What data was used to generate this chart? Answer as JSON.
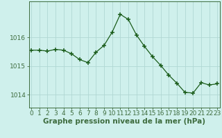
{
  "x": [
    0,
    1,
    2,
    3,
    4,
    5,
    6,
    7,
    8,
    9,
    10,
    11,
    12,
    13,
    14,
    15,
    16,
    17,
    18,
    19,
    20,
    21,
    22,
    23
  ],
  "y": [
    1015.55,
    1015.55,
    1015.52,
    1015.58,
    1015.55,
    1015.42,
    1015.22,
    1015.12,
    1015.48,
    1015.72,
    1016.18,
    1016.8,
    1016.62,
    1016.08,
    1015.68,
    1015.32,
    1015.02,
    1014.68,
    1014.4,
    1014.08,
    1014.06,
    1014.42,
    1014.34,
    1014.38
  ],
  "bg_color": "#cff0ec",
  "grid_color": "#b0d8d4",
  "line_color": "#1a5c1a",
  "marker_color": "#1a5c1a",
  "xlabel": "Graphe pression niveau de la mer (hPa)",
  "yticks": [
    1014,
    1015,
    1016
  ],
  "ylim": [
    1013.55,
    1017.25
  ],
  "xlim": [
    -0.3,
    23.3
  ],
  "xticks": [
    0,
    1,
    2,
    3,
    4,
    5,
    6,
    7,
    8,
    9,
    10,
    11,
    12,
    13,
    14,
    15,
    16,
    17,
    18,
    19,
    20,
    21,
    22,
    23
  ],
  "xtick_labels": [
    "0",
    "1",
    "2",
    "3",
    "4",
    "5",
    "6",
    "7",
    "8",
    "9",
    "10",
    "11",
    "12",
    "13",
    "14",
    "15",
    "16",
    "17",
    "18",
    "19",
    "20",
    "21",
    "22",
    "23"
  ],
  "border_color": "#3d6b3d",
  "xlabel_fontsize": 7.5,
  "tick_fontsize": 6.5
}
